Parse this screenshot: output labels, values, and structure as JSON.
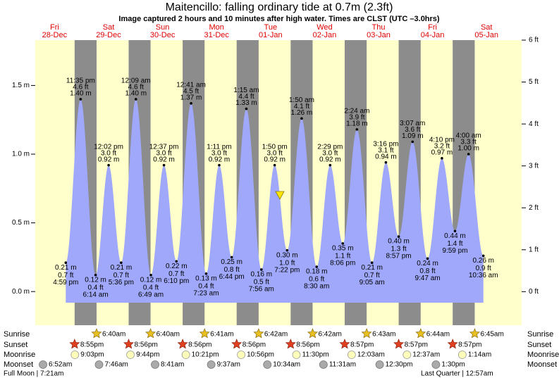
{
  "chart_data": {
    "type": "tide",
    "title": "Maitencillo: falling  ordinary tide at 0.7m (2.3ft)",
    "subtitle": "Image captured 2 hours and 10 minutes after high water. Times are CLST (UTC –3.0hrs)",
    "ylim": [
      -0.245,
      1.83
    ],
    "yticks": [
      {
        "value": 0,
        "label": "0.0 m"
      },
      {
        "value": 0.5,
        "label": "0.5 m"
      },
      {
        "value": 1,
        "label": "1.0 m"
      },
      {
        "value": 1.5,
        "label": "1.5 m"
      }
    ],
    "y2lim": [
      -0.8,
      6
    ],
    "y2ticks": [
      {
        "value": 0,
        "label": "0 ft"
      },
      {
        "value": 1,
        "label": "1 ft"
      },
      {
        "value": 2,
        "label": "2 ft"
      },
      {
        "value": 3,
        "label": "3 ft"
      },
      {
        "value": 4,
        "label": "4 ft"
      },
      {
        "value": 5,
        "label": "5 ft"
      },
      {
        "value": 6,
        "label": "6 ft"
      }
    ],
    "color": "#9fa8fb",
    "row_labels": {
      "sunrise": "Sunrise",
      "sunset": "Sunset",
      "moonrise": "Moonrise",
      "moonset": "Moonset"
    },
    "moon_phases": [
      "Full Moon | 7:21am",
      "Last Quarter | 12:57am"
    ],
    "days": [
      {
        "day": "Fri",
        "date": "28-Dec",
        "sunset": "8:55pm",
        "moonrise": "9:03pm",
        "moonset": "6:52am",
        "tides": [
          {
            "time": "4:59 pm",
            "ft": "0.7 ft",
            "value": 0.21,
            "value_label": "0.21 m"
          },
          {
            "time": "11:35 pm",
            "ft": "4.6 ft",
            "value": 1.4,
            "value_label": "1.40 m"
          }
        ]
      },
      {
        "day": "Sat",
        "date": "29-Dec",
        "sunrise": "6:40am",
        "sunset": "8:56pm",
        "moonrise": "9:44pm",
        "moonset": "7:46am",
        "tides": [
          {
            "time": "6:14 am",
            "ft": "0.4 ft",
            "value": 0.12,
            "value_label": "0.12 m"
          },
          {
            "time": "12:02 pm",
            "ft": "3.0 ft",
            "value": 0.92,
            "value_label": "0.92 m"
          },
          {
            "time": "5:36 pm",
            "ft": "0.7 ft",
            "value": 0.21,
            "value_label": "0.21 m"
          }
        ]
      },
      {
        "day": "Sun",
        "date": "30-Dec",
        "sunrise": "6:40am",
        "sunset": "8:56pm",
        "moonrise": "10:21pm",
        "moonset": "8:41am",
        "tides": [
          {
            "time": "12:09 am",
            "ft": "4.6 ft",
            "value": 1.4,
            "value_label": "1.40 m"
          },
          {
            "time": "6:49 am",
            "ft": "0.4 ft",
            "value": 0.12,
            "value_label": "0.12 m"
          },
          {
            "time": "12:37 pm",
            "ft": "3.0 ft",
            "value": 0.92,
            "value_label": "0.92 m"
          },
          {
            "time": "6:10 pm",
            "ft": "0.7 ft",
            "value": 0.22,
            "value_label": "0.22 m"
          }
        ]
      },
      {
        "day": "Mon",
        "date": "31-Dec",
        "sunrise": "6:41am",
        "sunset": "8:56pm",
        "moonrise": "10:56pm",
        "moonset": "9:37am",
        "tides": [
          {
            "time": "12:41 am",
            "ft": "4.5 ft",
            "value": 1.37,
            "value_label": "1.37 m"
          },
          {
            "time": "7:23 am",
            "ft": "0.4 ft",
            "value": 0.13,
            "value_label": "0.13 m"
          },
          {
            "time": "1:11 pm",
            "ft": "3.0 ft",
            "value": 0.92,
            "value_label": "0.92 m"
          },
          {
            "time": "6:44 pm",
            "ft": "0.8 ft",
            "value": 0.25,
            "value_label": "0.25 m"
          }
        ]
      },
      {
        "day": "Tue",
        "date": "01-Jan",
        "sunrise": "6:42am",
        "sunset": "8:56pm",
        "moonrise": "11:30pm",
        "moonset": "10:34am",
        "tides": [
          {
            "time": "1:15 am",
            "ft": "4.4 ft",
            "value": 1.33,
            "value_label": "1.33 m"
          },
          {
            "time": "7:56 am",
            "ft": "0.5 ft",
            "value": 0.16,
            "value_label": "0.16 m"
          },
          {
            "time": "1:50 pm",
            "ft": "3.0 ft",
            "value": 0.92,
            "value_label": "0.92 m"
          },
          {
            "time": "7:22 pm",
            "ft": "1.0 ft",
            "value": 0.3,
            "value_label": "0.30 m"
          }
        ]
      },
      {
        "day": "Wed",
        "date": "02-Jan",
        "sunrise": "6:42am",
        "sunset": "8:57pm",
        "moonset": "11:31am",
        "tides": [
          {
            "time": "1:50 am",
            "ft": "4.1 ft",
            "value": 1.26,
            "value_label": "1.26 m"
          },
          {
            "time": "8:30 am",
            "ft": "0.6 ft",
            "value": 0.18,
            "value_label": "0.18 m"
          },
          {
            "time": "2:29 pm",
            "ft": "3.0 ft",
            "value": 0.92,
            "value_label": "0.92 m"
          },
          {
            "time": "8:06 pm",
            "ft": "1.1 ft",
            "value": 0.35,
            "value_label": "0.35 m"
          }
        ]
      },
      {
        "day": "Thu",
        "date": "03-Jan",
        "sunrise": "6:43am",
        "sunset": "8:57pm",
        "moonrise": "12:03am",
        "moonset": "12:30pm",
        "tides": [
          {
            "time": "2:24 am",
            "ft": "3.9 ft",
            "value": 1.18,
            "value_label": "1.18 m"
          },
          {
            "time": "9:05 am",
            "ft": "0.7 ft",
            "value": 0.21,
            "value_label": "0.21 m"
          },
          {
            "time": "3:16 pm",
            "ft": "3.1 ft",
            "value": 0.94,
            "value_label": "0.94 m"
          },
          {
            "time": "8:57 pm",
            "ft": "1.3 ft",
            "value": 0.4,
            "value_label": "0.40 m"
          }
        ]
      },
      {
        "day": "Fri",
        "date": "04-Jan",
        "sunrise": "6:44am",
        "sunset": "8:57pm",
        "moonrise": "12:37am",
        "moonset": "1:30pm",
        "tides": [
          {
            "time": "3:07 am",
            "ft": "3.6 ft",
            "value": 1.09,
            "value_label": "1.09 m"
          },
          {
            "time": "9:47 am",
            "ft": "0.8 ft",
            "value": 0.24,
            "value_label": "0.24 m"
          },
          {
            "time": "4:10 pm",
            "ft": "3.2 ft",
            "value": 0.97,
            "value_label": "0.97 m"
          },
          {
            "time": "9:59 pm",
            "ft": "1.4 ft",
            "value": 0.44,
            "value_label": "0.44 m"
          }
        ]
      },
      {
        "day": "Sat",
        "date": "05-Jan",
        "sunrise": "6:45am",
        "moonrise": "1:14am",
        "tides": [
          {
            "time": "4:00 am",
            "ft": "3.3 ft",
            "value": 1,
            "value_label": "1.00 m"
          },
          {
            "time": "10:36 am",
            "ft": "0.9 ft",
            "value": 0.26,
            "value_label": "0.26 m"
          }
        ]
      }
    ]
  }
}
